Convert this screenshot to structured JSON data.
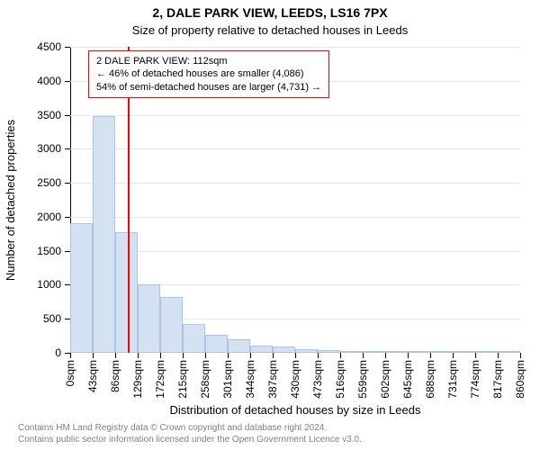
{
  "title": "2, DALE PARK VIEW, LEEDS, LS16 7PX",
  "subtitle": "Size of property relative to detached houses in Leeds",
  "title_fontsize": 14,
  "subtitle_fontsize": 13,
  "chart": {
    "type": "histogram",
    "y": {
      "label": "Number of detached properties",
      "label_fontsize": 13,
      "min": 0,
      "max": 4500,
      "step": 500,
      "tick_fontsize": 12,
      "grid_color": "#e6e6e6"
    },
    "x": {
      "label": "Distribution of detached houses by size in Leeds",
      "label_fontsize": 13,
      "tick_step": 43,
      "unit": "sqm",
      "max": 860,
      "tick_fontsize": 12,
      "ticks": [
        0,
        43,
        86,
        129,
        172,
        215,
        258,
        301,
        344,
        387,
        430,
        473,
        516,
        559,
        602,
        645,
        688,
        731,
        774,
        817,
        860
      ]
    },
    "bars": {
      "fill": "#d3e1f0",
      "border": "#a9c5e3",
      "values": [
        1900,
        3480,
        1770,
        1000,
        820,
        430,
        260,
        200,
        110,
        95,
        55,
        40,
        30,
        25,
        20,
        15,
        10,
        10,
        5,
        5
      ],
      "bin_width_sqm": 43
    },
    "marker": {
      "value_sqm": 112,
      "color": "#ff0000"
    },
    "annotation": {
      "border": "#ff0000",
      "lines": [
        "2 DALE PARK VIEW: 112sqm",
        "← 46% of detached houses are smaller (4,086)",
        "54% of semi-detached houses are larger (4,731) →"
      ],
      "fontsize": 11
    }
  },
  "footer": {
    "line1": "Contains HM Land Registry data © Crown copyright and database right 2024.",
    "line2": "Contains public sector information licensed under the Open Government Licence v3.0.",
    "fontsize": 10,
    "color": "#808080"
  }
}
